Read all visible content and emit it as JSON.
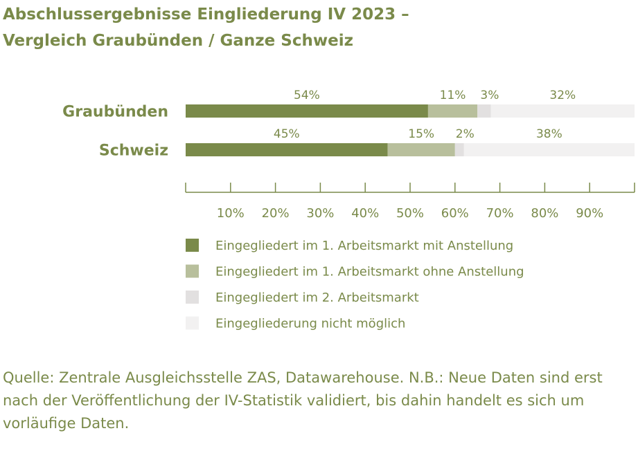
{
  "title_lines": [
    "Abschlussergebnisse Eingliederung IV 2023 –",
    "Vergleich Graubünden / Ganze Schweiz"
  ],
  "source": "Quelle: Zentrale Ausgleichsstelle ZAS, Datawarehouse. N.B.: Neue Daten sind erst nach der Veröffentlichung der IV-Statistik validiert, bis dahin handelt es sich um vorläufige Daten.",
  "colors": [
    "#7a8a4a",
    "#b8bf9c",
    "#e2e0e0",
    "#f2f1f1"
  ],
  "chart_data": {
    "type": "bar",
    "orientation": "horizontal",
    "stacked": true,
    "categories": [
      "Graubünden",
      "Schweiz"
    ],
    "series": [
      {
        "name": "Eingegliedert im 1. Arbeitsmarkt mit Anstellung",
        "values": [
          54,
          45
        ],
        "labels": [
          "54%",
          "45%"
        ]
      },
      {
        "name": "Eingegliedert im 1. Arbeitsmarkt ohne Anstellung",
        "values": [
          11,
          15
        ],
        "labels": [
          "11%",
          "15%"
        ]
      },
      {
        "name": "Eingegliedert im 2. Arbeitsmarkt",
        "values": [
          3,
          2
        ],
        "labels": [
          "3%",
          "2%"
        ]
      },
      {
        "name": "Eingegliederung nicht möglich",
        "values": [
          32,
          38
        ],
        "labels": [
          "32%",
          "38%"
        ]
      }
    ],
    "xlim": [
      0,
      100
    ],
    "ticks": [
      10,
      20,
      30,
      40,
      50,
      60,
      70,
      80,
      90
    ],
    "tick_labels": [
      "10%",
      "20%",
      "30%",
      "40%",
      "50%",
      "60%",
      "70%",
      "80%",
      "90%"
    ],
    "legend_position": "bottom",
    "grid": false
  }
}
